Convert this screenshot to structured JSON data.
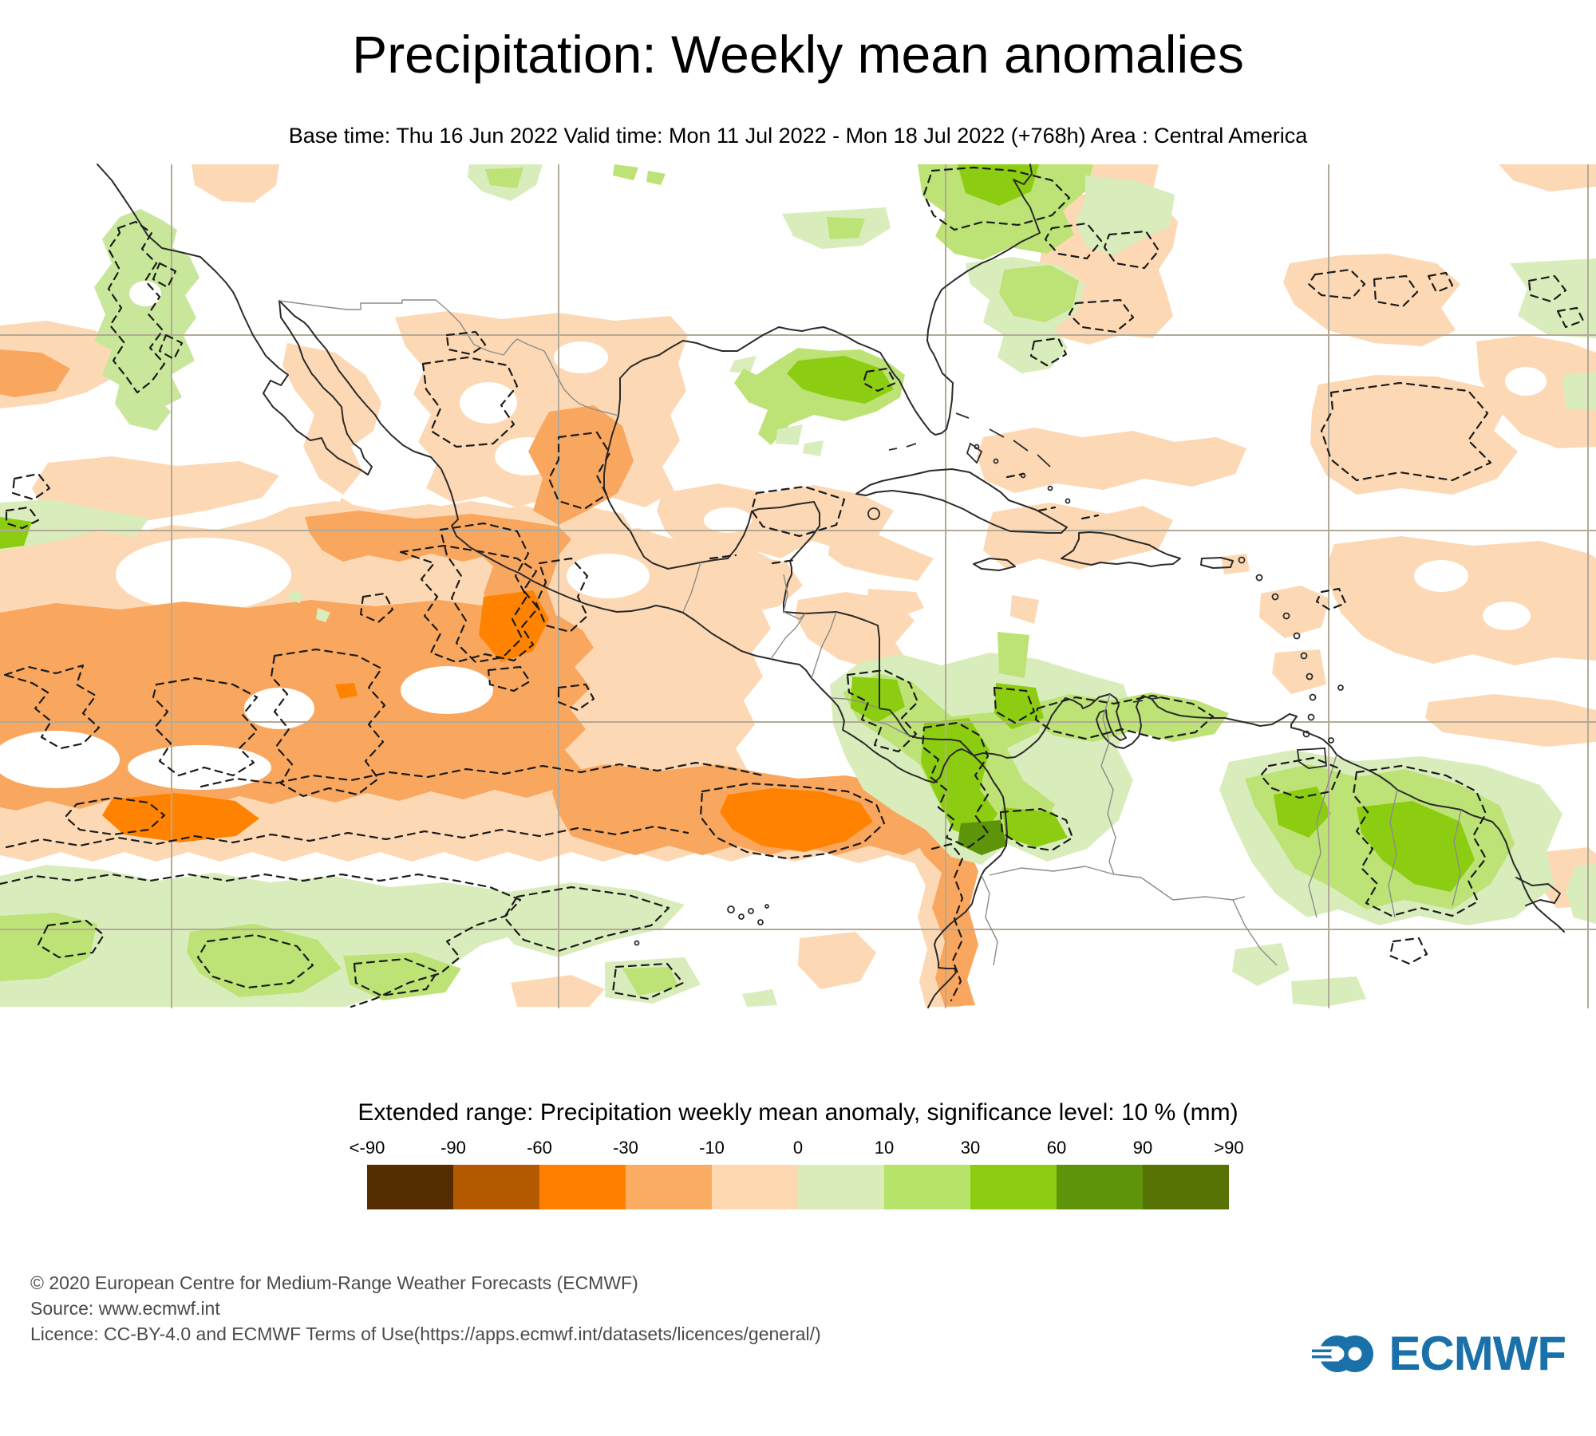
{
  "title": "Precipitation: Weekly mean anomalies",
  "subtitle": "Base time: Thu 16 Jun 2022 Valid time: Mon 11 Jul 2022 - Mon 18 Jul 2022 (+768h) Area : Central America",
  "legend": {
    "title": "Extended range: Precipitation weekly mean anomaly, significance level: 10 % (mm)",
    "ticks": [
      "<-90",
      "-90",
      "-60",
      "-30",
      "-10",
      "0",
      "10",
      "30",
      "60",
      "90",
      ">90"
    ],
    "cells": [
      {
        "range": "< -90",
        "color": "#552d00"
      },
      {
        "range": "-90 to -60",
        "color": "#b35a00"
      },
      {
        "range": "-60 to -30",
        "color": "#ff8000"
      },
      {
        "range": "-30 to -10",
        "color": "#fbac63"
      },
      {
        "range": "-10 to 0",
        "color": "#fed8b0"
      },
      {
        "range": "0 to 10",
        "color": "#d9ecb9"
      },
      {
        "range": "10 to 30",
        "color": "#b6e36a"
      },
      {
        "range": "30 to 60",
        "color": "#8ccd11"
      },
      {
        "range": "60 to 90",
        "color": "#5d9409"
      },
      {
        "range": "> 90",
        "color": "#567203"
      }
    ]
  },
  "footer": {
    "copyright": "© 2020 European Centre for Medium-Range Weather Forecasts (ECMWF)",
    "source": "Source: www.ecmwf.int",
    "licence": "Licence: CC-BY-4.0 and ECMWF Terms of Use(https://apps.ecmwf.int/datasets/licences/general/)"
  },
  "logo": {
    "text": "ECMWF"
  },
  "theme": {
    "text": "#000000",
    "footer_text": "#4a4a4a",
    "logo_blue": "#1a70a8",
    "grid": "#b2aa97",
    "coast": "#2b2b2b",
    "border": "#8c8c8c",
    "contour": "#1c1c1c",
    "peach": "#fcd9b4",
    "light_orange": "#f9a75f",
    "orange": "#ff8300",
    "pale_green": "#d9edbc",
    "light_green": "#bde276",
    "mid_green": "#c9e79b",
    "bright_green": "#8ccd11",
    "dark_green": "#5d9409"
  },
  "chart_data": {
    "type": "heatmap",
    "title": "Precipitation: Weekly mean anomalies",
    "variable": "Extended range: Precipitation weekly mean anomaly (mm)",
    "significance_level": "10 %",
    "area": "Central America",
    "base_time": "Thu 16 Jun 2022",
    "valid_time": "Mon 11 Jul 2022 - Mon 18 Jul 2022",
    "lead_time": "+768h",
    "levels_mm": [
      -90,
      -60,
      -30,
      -10,
      0,
      10,
      30,
      60,
      90
    ],
    "legend_labels": [
      "<-90",
      "-90",
      "-60",
      "-30",
      "-10",
      "0",
      "10",
      "30",
      "60",
      "90",
      ">90"
    ],
    "colors": [
      "#552d00",
      "#b35a00",
      "#ff8000",
      "#fbac63",
      "#fed8b0",
      "#d9ecb9",
      "#b6e36a",
      "#8ccd11",
      "#5d9409",
      "#567203"
    ],
    "legend_position": "bottom",
    "grid": "on",
    "notable_features": [
      "Strong negative anomaly band (-60 to -10 mm) across the eastern tropical Pacific ITCZ, roughly 5-12N, with a -60 to -30 mm core near 95W",
      "Second dry band west of Mexico/Central America around 10-15N with dashed significance contours",
      "Negative anomalies (-30 to -10 mm) over eastern Mexico, Texas coast and the Bay of Campeche",
      "Positive anomalies (10 to 60 mm) over Panama, western Colombia (core >60 mm), Venezuela coast and the Guianas",
      "Positive anomalies over the US Gulf coast near Florida panhandle and the western Atlantic off the southeast US",
      "Weak negative anomalies (-10 to 0 mm) scattered across the subtropical Atlantic and Caribbean islands",
      "Positive anomalies (0 to 30 mm) in the far southeastern Pacific south of the dry band",
      "White areas are not significant at the 10 % level; dashed contours enclose significant regions"
    ]
  }
}
